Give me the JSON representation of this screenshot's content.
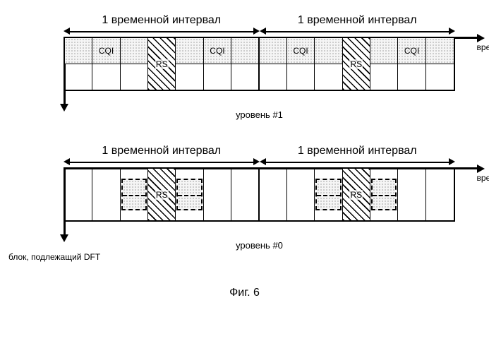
{
  "labels": {
    "interval": "1 временной интервал",
    "time": "время",
    "level1": "уровень #1",
    "level0": "уровень #0",
    "dft": "блок, подлежащий DFT",
    "figure": "Фиг. 6",
    "cqi": "CQI",
    "rs": "RS"
  },
  "styling": {
    "colors": {
      "bg": "#ffffff",
      "line": "#000000",
      "dot_fill_bg": "#f5f5f5",
      "hatch_stroke": "#000000"
    },
    "font_family": "Arial, sans-serif",
    "label_fontsize": 12,
    "level_fontsize": 13,
    "figure_fontsize": 16
  },
  "level1": {
    "cells_per_interval": 7,
    "intervals": 2,
    "structure_per_interval": [
      {
        "type": "cqi",
        "span": 3
      },
      {
        "type": "rs",
        "span": 1
      },
      {
        "type": "cqi",
        "span": 3
      }
    ],
    "patterns": {
      "cqi": "dots",
      "rs": "hatch"
    }
  },
  "level0": {
    "cells_per_interval": 7,
    "intervals": 2,
    "structure_per_interval": [
      {
        "type": "empty",
        "span": 2
      },
      {
        "type": "dashed_dots",
        "span": 1
      },
      {
        "type": "rs",
        "span": 1
      },
      {
        "type": "dashed_dots",
        "span": 1
      },
      {
        "type": "empty",
        "span": 2
      }
    ],
    "patterns": {
      "dashed_dots": "dots_with_dashed_border",
      "rs": "hatch"
    }
  }
}
